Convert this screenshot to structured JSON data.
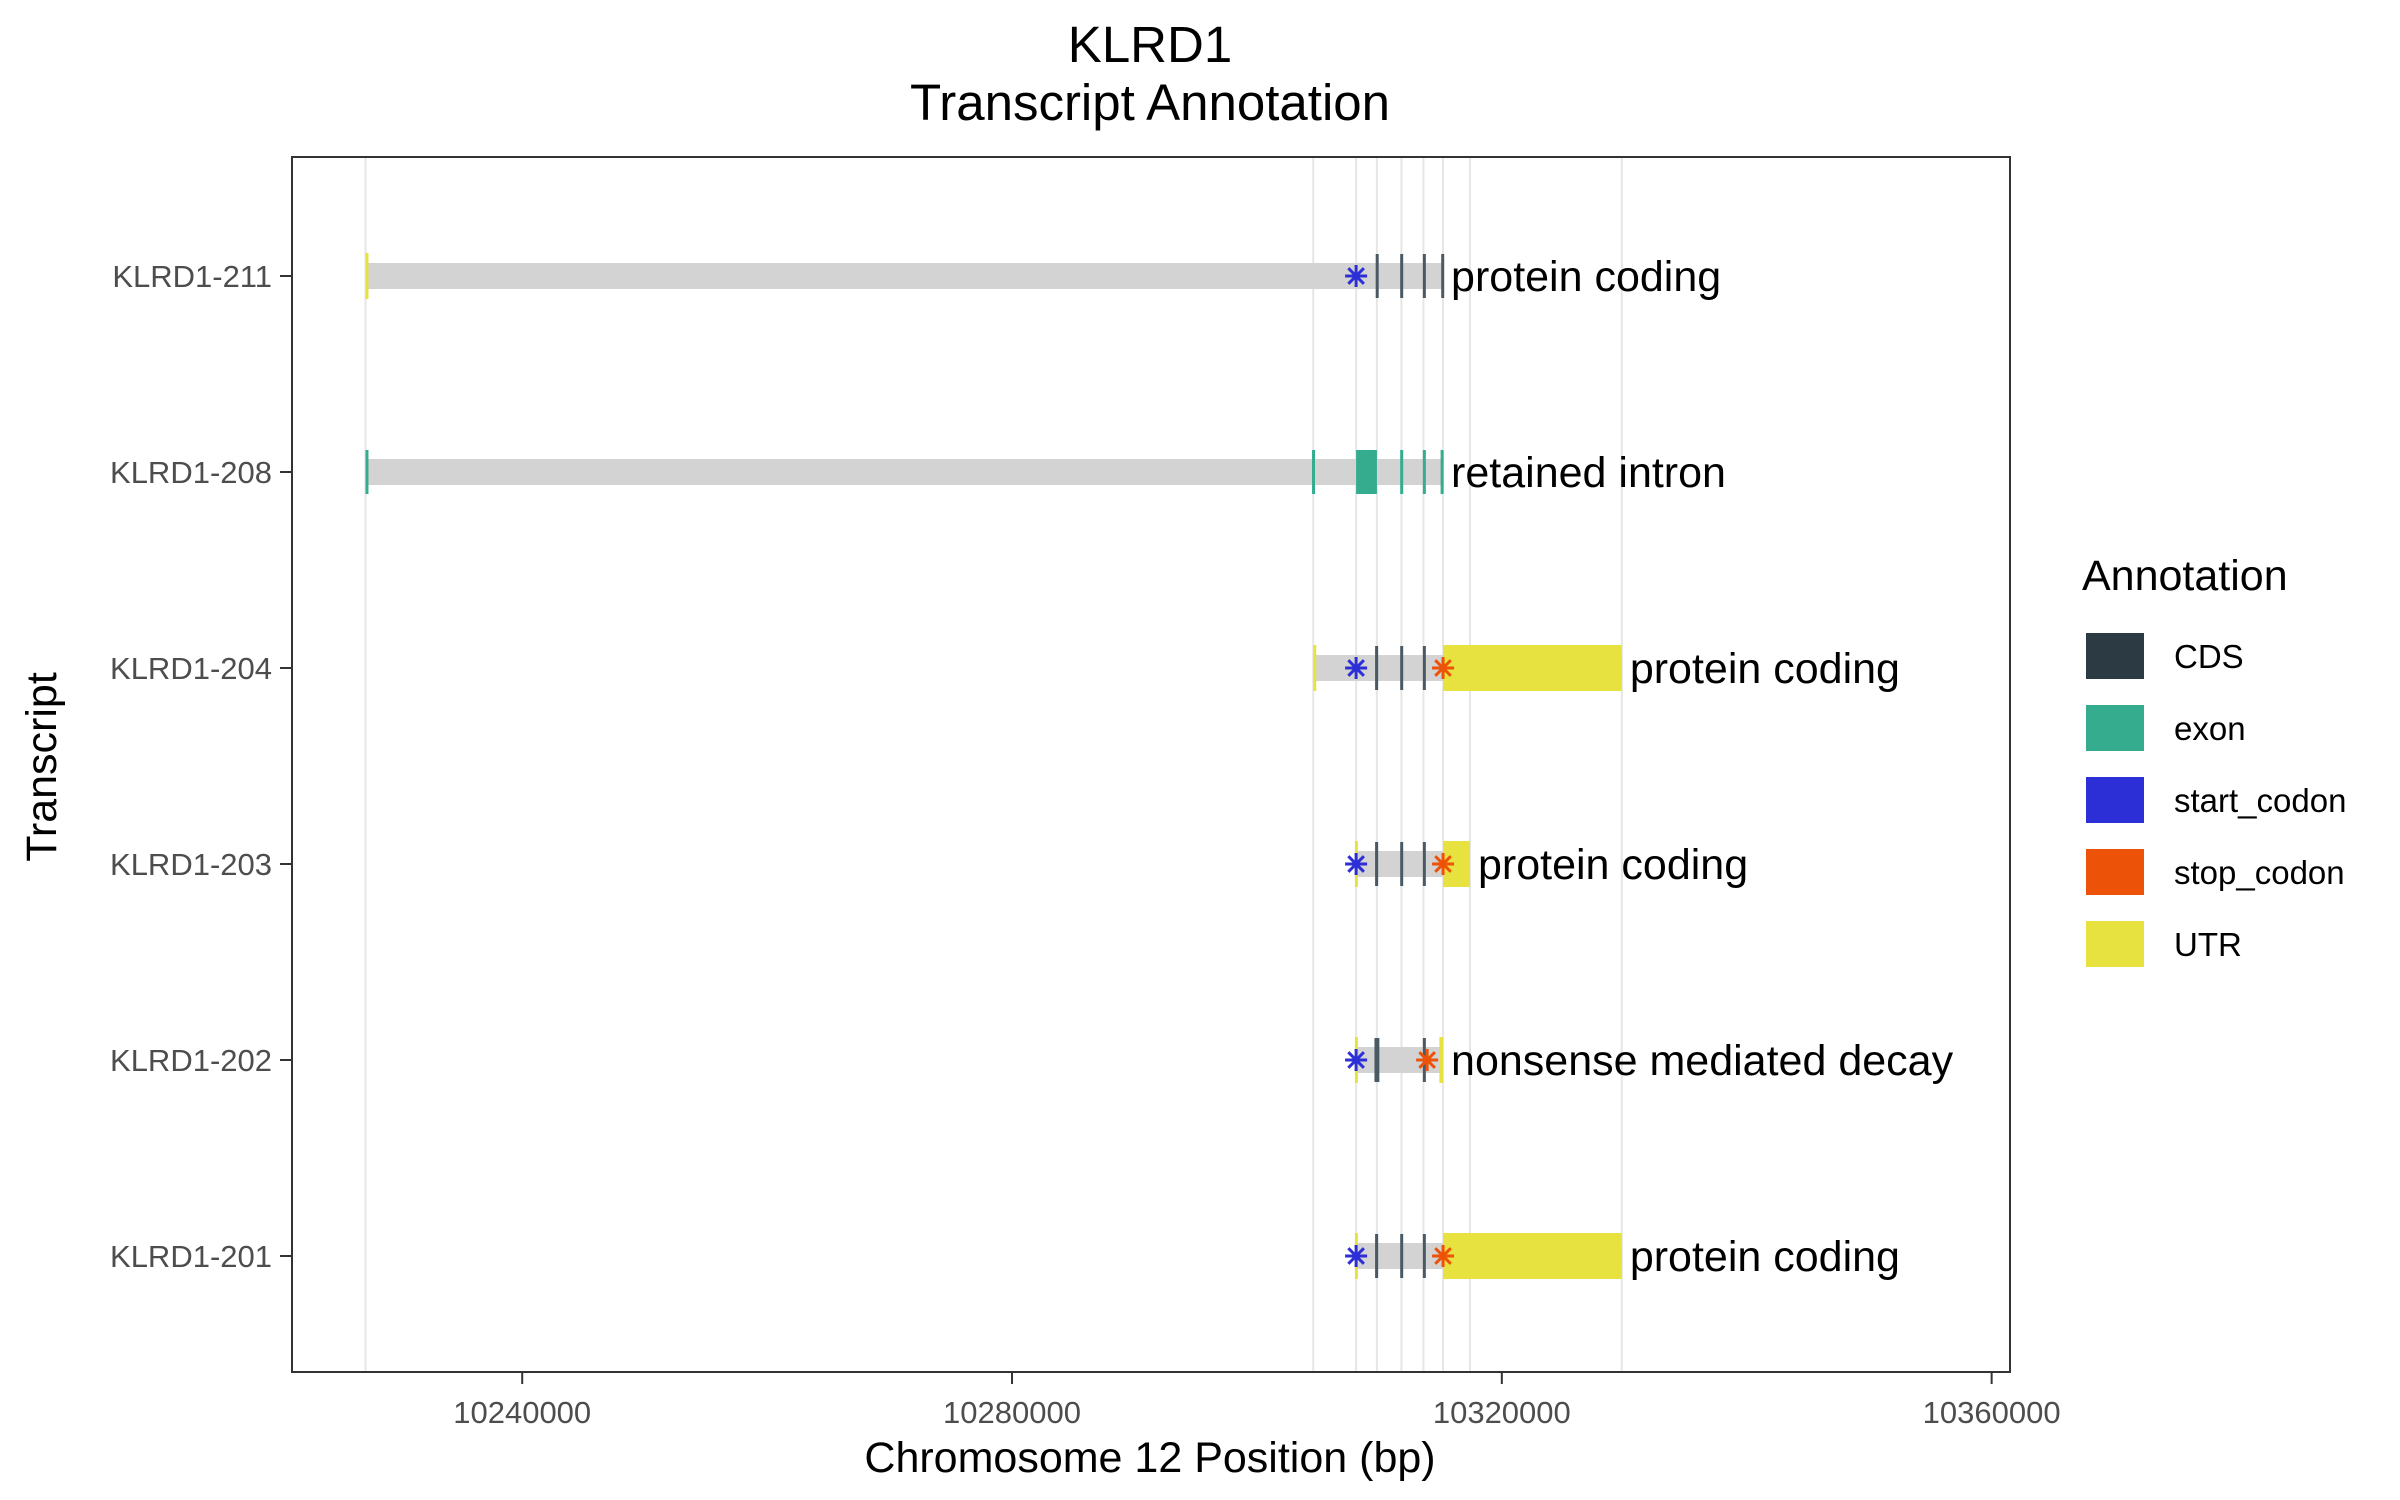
{
  "chart_data": {
    "type": "gene-transcript-annotation",
    "title": "KLRD1",
    "subtitle": "Transcript Annotation",
    "xlabel": "Chromosome 12 Position (bp)",
    "ylabel": "Transcript",
    "xlim": [
      10221200,
      10361500
    ],
    "x_ticks": [
      10240000,
      10280000,
      10320000,
      10360000
    ],
    "x_tick_labels": [
      "10240000",
      "10280000",
      "10320000",
      "10360000"
    ],
    "grid": "vertical lines at exon boundaries",
    "legend_position": "right",
    "legend": {
      "title": "Annotation",
      "items": [
        {
          "key": "CDS",
          "label": "CDS",
          "color": "#2c3a44"
        },
        {
          "key": "exon",
          "label": "exon",
          "color": "#35ac8e"
        },
        {
          "key": "start_codon",
          "label": "start_codon",
          "color": "#2c2fd6"
        },
        {
          "key": "stop_codon",
          "label": "stop_codon",
          "color": "#ec5208"
        },
        {
          "key": "UTR",
          "label": "UTR",
          "color": "#e8e240"
        }
      ]
    },
    "colors": {
      "intron_bar": "#d3d3d3",
      "grid": "#e6e6e6",
      "panel_border": "#333333"
    },
    "vlines": [
      10227200,
      10304600,
      10308100,
      10309800,
      10311800,
      10313600,
      10315200,
      10317400,
      10329800
    ],
    "transcripts": [
      {
        "name": "KLRD1-211",
        "biotype": "protein coding",
        "start": 10227200,
        "end": 10315200,
        "features": [
          {
            "type": "UTR",
            "start": 10227200,
            "end": 10227350
          },
          {
            "type": "CDS",
            "start": 10309700,
            "end": 10309850
          },
          {
            "type": "CDS",
            "start": 10311700,
            "end": 10311850
          },
          {
            "type": "CDS",
            "start": 10313550,
            "end": 10313700
          },
          {
            "type": "CDS",
            "start": 10315050,
            "end": 10315200
          }
        ],
        "start_codons": [
          10308100
        ],
        "stop_codons": []
      },
      {
        "name": "KLRD1-208",
        "biotype": "retained intron",
        "start": 10227200,
        "end": 10315200,
        "features": [
          {
            "type": "exon",
            "start": 10227200,
            "end": 10227400
          },
          {
            "type": "exon",
            "start": 10304500,
            "end": 10304700
          },
          {
            "type": "exon",
            "start": 10308100,
            "end": 10309800
          },
          {
            "type": "exon",
            "start": 10311700,
            "end": 10311850
          },
          {
            "type": "exon",
            "start": 10313550,
            "end": 10313700
          },
          {
            "type": "exon",
            "start": 10315000,
            "end": 10315200
          }
        ],
        "start_codons": [],
        "stop_codons": []
      },
      {
        "name": "KLRD1-204",
        "biotype": "protein coding",
        "start": 10304600,
        "end": 10329800,
        "features": [
          {
            "type": "UTR",
            "start": 10304600,
            "end": 10304750
          },
          {
            "type": "CDS",
            "start": 10309650,
            "end": 10309900
          },
          {
            "type": "CDS",
            "start": 10311700,
            "end": 10311850
          },
          {
            "type": "CDS",
            "start": 10313550,
            "end": 10313700
          },
          {
            "type": "UTR",
            "start": 10315200,
            "end": 10329800
          }
        ],
        "start_codons": [
          10308100
        ],
        "stop_codons": [
          10315200
        ]
      },
      {
        "name": "KLRD1-203",
        "biotype": "protein coding",
        "start": 10308000,
        "end": 10317400,
        "features": [
          {
            "type": "UTR",
            "start": 10308000,
            "end": 10308150
          },
          {
            "type": "CDS",
            "start": 10309650,
            "end": 10309900
          },
          {
            "type": "CDS",
            "start": 10311700,
            "end": 10311850
          },
          {
            "type": "CDS",
            "start": 10313550,
            "end": 10313700
          },
          {
            "type": "UTR",
            "start": 10315200,
            "end": 10317400
          }
        ],
        "start_codons": [
          10308100
        ],
        "stop_codons": [
          10315200
        ]
      },
      {
        "name": "KLRD1-202",
        "biotype": "nonsense mediated decay",
        "start": 10308000,
        "end": 10315200,
        "features": [
          {
            "type": "UTR",
            "start": 10308000,
            "end": 10308150
          },
          {
            "type": "CDS",
            "start": 10309600,
            "end": 10310000
          },
          {
            "type": "CDS",
            "start": 10313550,
            "end": 10313700
          },
          {
            "type": "UTR",
            "start": 10314900,
            "end": 10315200
          }
        ],
        "start_codons": [
          10308100
        ],
        "stop_codons": [
          10313900
        ]
      },
      {
        "name": "KLRD1-201",
        "biotype": "protein coding",
        "start": 10308000,
        "end": 10329800,
        "features": [
          {
            "type": "UTR",
            "start": 10308000,
            "end": 10308150
          },
          {
            "type": "CDS",
            "start": 10309650,
            "end": 10309900
          },
          {
            "type": "CDS",
            "start": 10311700,
            "end": 10311850
          },
          {
            "type": "CDS",
            "start": 10313550,
            "end": 10313700
          },
          {
            "type": "UTR",
            "start": 10315200,
            "end": 10329800
          }
        ],
        "start_codons": [
          10308100
        ],
        "stop_codons": [
          10315200
        ]
      }
    ]
  }
}
